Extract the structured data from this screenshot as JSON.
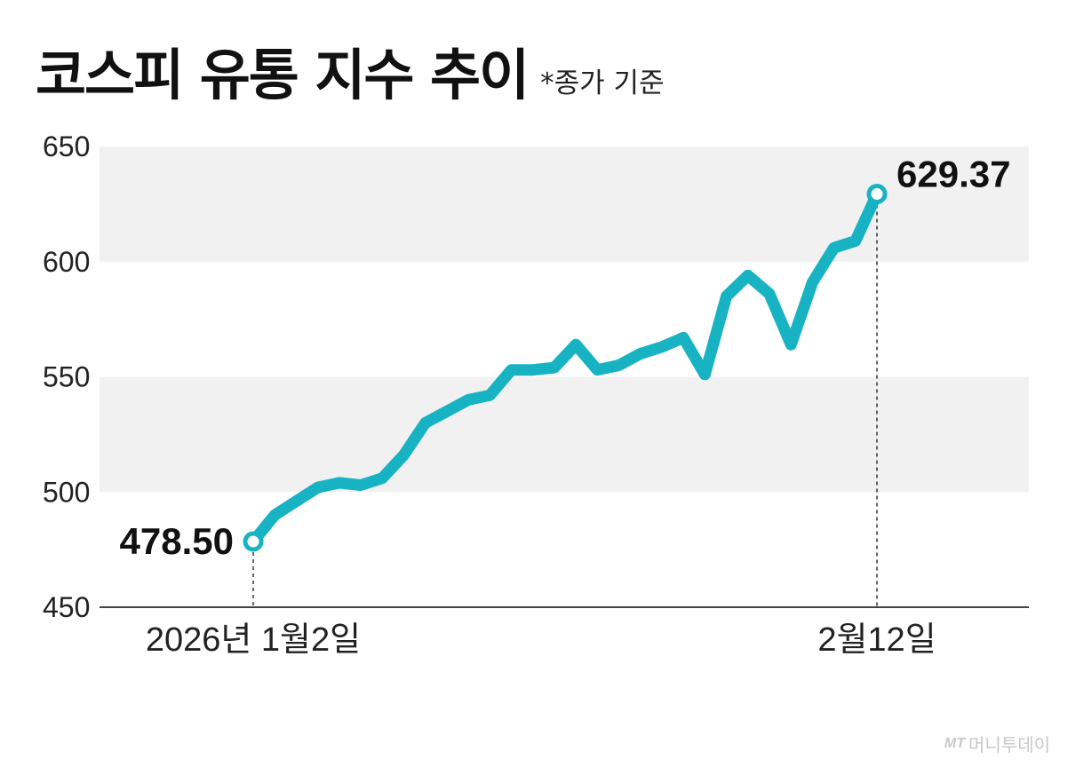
{
  "header": {
    "title": "코스피 유통 지수 추이",
    "subtitle": "*종가 기준"
  },
  "watermark": {
    "logo": "MT",
    "text": "머니투데이"
  },
  "colors": {
    "line": "#17b3c3",
    "band": "#f1f1f1",
    "axis": "#444444"
  },
  "chart_data": {
    "type": "line",
    "title": "코스피 유통 지수 추이",
    "subtitle": "*종가 기준",
    "ylim": [
      450,
      650
    ],
    "yticks": [
      "650",
      "600",
      "550",
      "500",
      "450"
    ],
    "xtick_labels": [
      "2026년 1월2일",
      "2월12일"
    ],
    "grid": "alternating horizontal bands",
    "series": [
      {
        "values": [
          478.5,
          490,
          496,
          502,
          504,
          503,
          506,
          516,
          530,
          535,
          540,
          542,
          553,
          553,
          554,
          564,
          553,
          555,
          560,
          563,
          567,
          551,
          585,
          594,
          586,
          564,
          591,
          606,
          609,
          629.37
        ]
      }
    ],
    "annotations": [
      {
        "text": "478.50",
        "index": 0,
        "value": 478.5
      },
      {
        "text": "629.37",
        "index": 29,
        "value": 629.37
      }
    ]
  }
}
